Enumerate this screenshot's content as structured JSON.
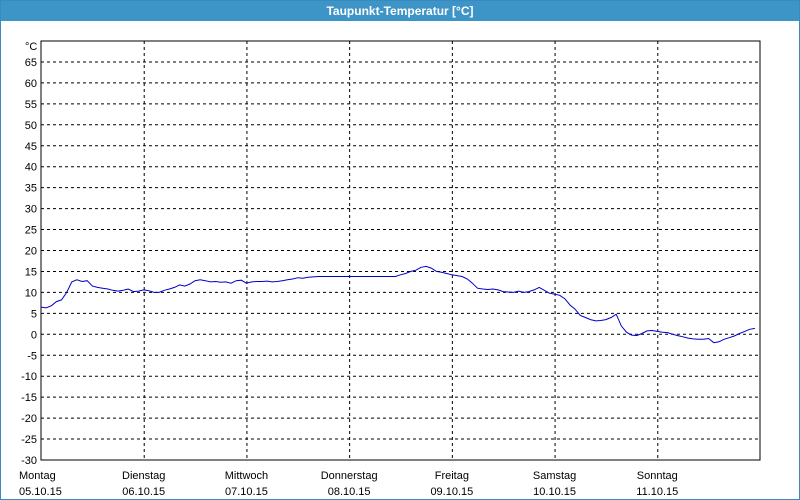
{
  "window": {
    "title": "Taupunkt-Temperatur [°C]"
  },
  "chart_data": {
    "type": "line",
    "title": "Taupunkt-Temperatur [°C]",
    "y_unit": "°C",
    "ylim": [
      -30,
      70
    ],
    "y_ticks": [
      65,
      60,
      55,
      50,
      45,
      40,
      35,
      30,
      25,
      20,
      15,
      10,
      5,
      0,
      -5,
      -10,
      -15,
      -20,
      -25,
      -30
    ],
    "grid": true,
    "x_days": [
      {
        "weekday": "Montag",
        "date": "05.10.15"
      },
      {
        "weekday": "Dienstag",
        "date": "06.10.15"
      },
      {
        "weekday": "Mittwoch",
        "date": "07.10.15"
      },
      {
        "weekday": "Donnerstag",
        "date": "08.10.15"
      },
      {
        "weekday": "Freitag",
        "date": "09.10.15"
      },
      {
        "weekday": "Samstag",
        "date": "10.10.15"
      },
      {
        "weekday": "Sonntag",
        "date": "11.10.15"
      }
    ],
    "line_color": "#0000cc",
    "series": [
      {
        "x": [
          0.0,
          0.05,
          0.1,
          0.15,
          0.2,
          0.25,
          0.3,
          0.35,
          0.4,
          0.45,
          0.5,
          0.55,
          0.6,
          0.65,
          0.7,
          0.75,
          0.8,
          0.85,
          0.9,
          0.95,
          1.0,
          1.05,
          1.1,
          1.15,
          1.2,
          1.25,
          1.3,
          1.35,
          1.4,
          1.45,
          1.5,
          1.55,
          1.6,
          1.65,
          1.7,
          1.75,
          1.8,
          1.85,
          1.9,
          1.95,
          2.0,
          2.05,
          2.1,
          2.15,
          2.2,
          2.25,
          2.3,
          2.35,
          2.4,
          2.45,
          2.5,
          2.55,
          2.6,
          2.65,
          2.7,
          2.75,
          2.8,
          2.85,
          2.9,
          2.95,
          3.0,
          3.05,
          3.1,
          3.15,
          3.2,
          3.25,
          3.3,
          3.35,
          3.4,
          3.45,
          3.5,
          3.55,
          3.6,
          3.65,
          3.7,
          3.75,
          3.8,
          3.85,
          3.9,
          3.95,
          4.0,
          4.05,
          4.1,
          4.15,
          4.2,
          4.25,
          4.3,
          4.35,
          4.4,
          4.45,
          4.5,
          4.55,
          4.6,
          4.65,
          4.7,
          4.75,
          4.8,
          4.85,
          4.9,
          4.95,
          5.0,
          5.05,
          5.1,
          5.15,
          5.2,
          5.25,
          5.3,
          5.35,
          5.4,
          5.45,
          5.5,
          5.55,
          5.6,
          5.65,
          5.7,
          5.75,
          5.8,
          5.85,
          5.9,
          5.95,
          6.0,
          6.05,
          6.1,
          6.15,
          6.2,
          6.25,
          6.3,
          6.35,
          6.4,
          6.45,
          6.5,
          6.55,
          6.6,
          6.65,
          6.7,
          6.75,
          6.8,
          6.85,
          6.9,
          6.95
        ],
        "y": [
          6.5,
          6.3,
          6.8,
          7.8,
          8.2,
          10.0,
          12.5,
          13.0,
          12.6,
          12.8,
          11.5,
          11.2,
          11.0,
          10.8,
          10.5,
          10.3,
          10.5,
          10.8,
          10.2,
          10.3,
          10.6,
          10.4,
          10.0,
          10.0,
          10.5,
          10.8,
          11.2,
          11.8,
          11.5,
          12.0,
          12.8,
          13.0,
          12.8,
          12.5,
          12.6,
          12.4,
          12.5,
          12.2,
          12.8,
          12.9,
          12.2,
          12.5,
          12.6,
          12.6,
          12.7,
          12.5,
          12.6,
          12.8,
          13.0,
          13.2,
          13.5,
          13.4,
          13.6,
          13.7,
          13.8,
          13.8,
          13.8,
          13.8,
          13.8,
          13.8,
          13.8,
          13.8,
          13.8,
          13.8,
          13.8,
          13.8,
          13.8,
          13.8,
          13.8,
          13.8,
          14.2,
          14.5,
          15.0,
          15.3,
          16.0,
          16.2,
          15.8,
          15.0,
          14.8,
          14.5,
          14.2,
          14.0,
          13.8,
          13.2,
          12.2,
          11.0,
          10.8,
          10.7,
          10.8,
          10.6,
          10.2,
          10.1,
          10.0,
          10.3,
          10.0,
          10.2,
          10.6,
          11.2,
          10.5,
          9.8,
          9.6,
          9.3,
          8.5,
          7.0,
          6.0,
          4.5,
          4.0,
          3.5,
          3.2,
          3.3,
          3.5,
          4.0,
          4.8,
          2.0,
          0.5,
          -0.2,
          -0.3,
          0.2,
          0.8,
          0.9,
          0.7,
          0.5,
          0.4,
          0.0,
          -0.3,
          -0.6,
          -0.9,
          -1.1,
          -1.2,
          -1.2,
          -1.0,
          -2.0,
          -1.8,
          -1.2,
          -0.8,
          -0.4,
          0.2,
          0.7,
          1.2,
          1.4
        ]
      }
    ]
  }
}
